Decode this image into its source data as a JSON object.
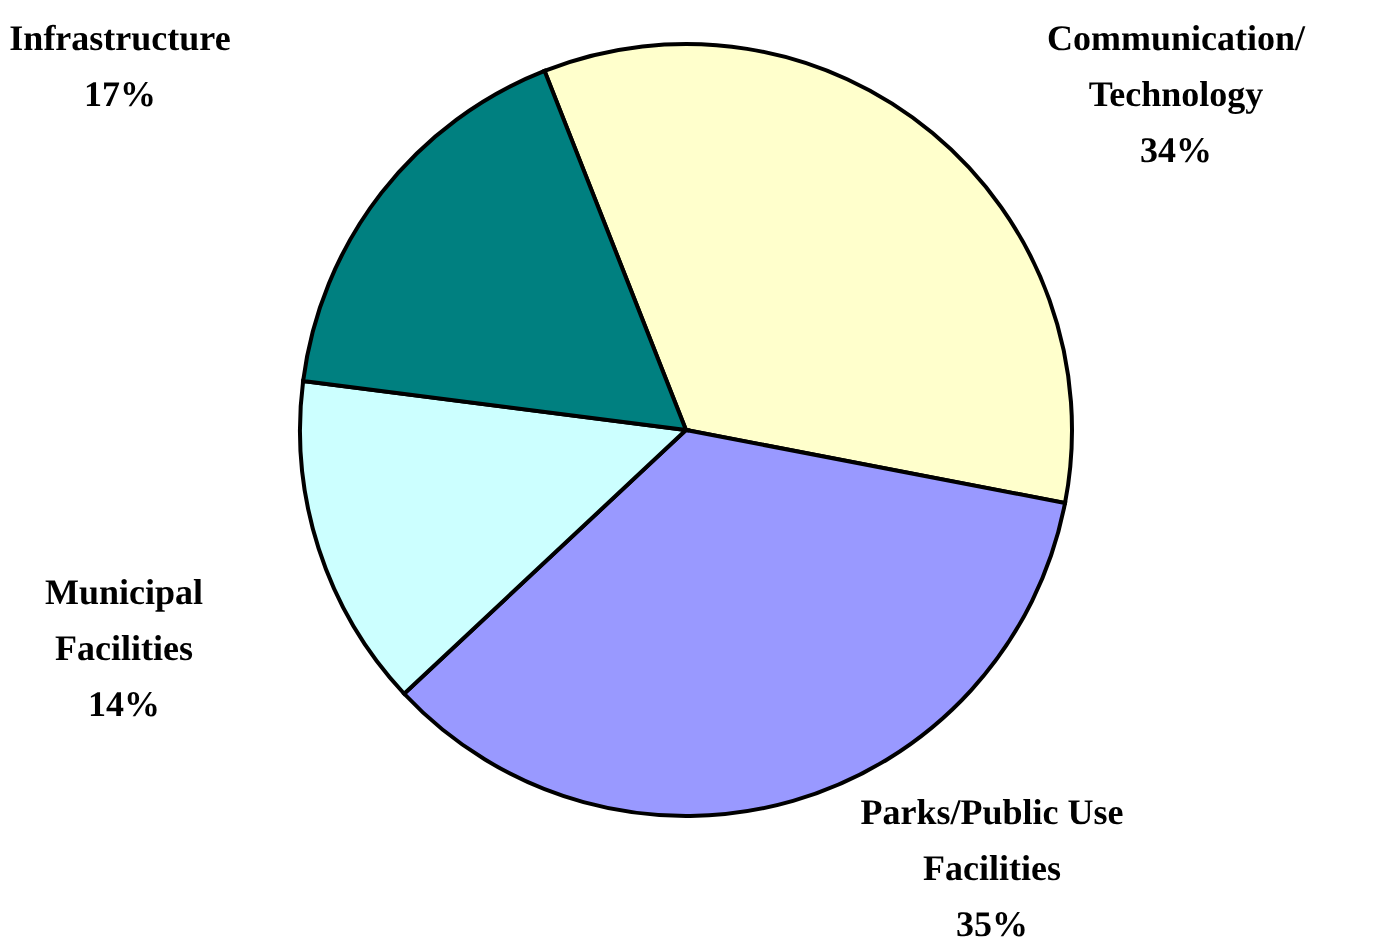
{
  "chart_data": {
    "type": "pie",
    "categories": [
      "Communication/Technology",
      "Parks/Public Use Facilities",
      "Municipal Facilities",
      "Infrastructure"
    ],
    "values": [
      34,
      35,
      14,
      17
    ],
    "value_labels": [
      "34%",
      "35%",
      "14%",
      "17%"
    ],
    "colors": [
      "#ffffcc",
      "#9999ff",
      "#ccffff",
      "#008080"
    ],
    "legend": false
  }
}
